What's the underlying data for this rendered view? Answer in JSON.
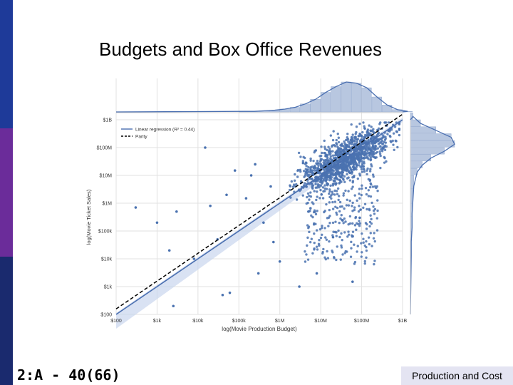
{
  "slide": {
    "title": "Budgets and Box Office Revenues",
    "footer_left": "2:A - 40(66)",
    "footer_right": "Production and Cost"
  },
  "colors": {
    "sidebar": [
      "#1e3a99",
      "#6b2c9a",
      "#1a2a6e"
    ],
    "point": "#4a72b0",
    "regression": "#4a6fb0",
    "ci_band": "#c9d6ee",
    "parity": "#000000",
    "hist_fill": "#b8c7e0",
    "grid": "#e1e1e1"
  },
  "chart_data": {
    "type": "scatter",
    "xlabel": "log(Movie Production Budget)",
    "ylabel": "log(Movie Ticket Sales)",
    "x_scale": "log",
    "y_scale": "log",
    "xlim": [
      100,
      1000000000
    ],
    "ylim": [
      100,
      1000000000
    ],
    "x_ticks": [
      100,
      1000,
      10000,
      100000,
      1000000,
      10000000,
      100000000,
      1000000000
    ],
    "x_tick_labels": [
      "$100",
      "$1k",
      "$10k",
      "$100k",
      "$1M",
      "$10M",
      "$100M",
      "$1B"
    ],
    "y_ticks": [
      100,
      1000,
      10000,
      100000,
      1000000,
      10000000,
      100000000,
      1000000000
    ],
    "y_tick_labels": [
      "$100",
      "$1k",
      "$10k",
      "$100k",
      "$1M",
      "$10M",
      "$100M",
      "$1B"
    ],
    "grid": true,
    "legend_position": "top-left",
    "legend": [
      {
        "label": "Linear regression (R² = 0.44)",
        "style": "solid",
        "color": "#4a6fb0"
      },
      {
        "label": "Parity",
        "style": "dashed",
        "color": "#000000"
      }
    ],
    "regression_line": {
      "x": [
        100,
        1000000000
      ],
      "y": [
        100,
        1000000000
      ]
    },
    "parity_line": {
      "x": [
        100,
        1000000000
      ],
      "y": [
        158,
        1580000000
      ]
    },
    "outliers": [
      {
        "x": 300,
        "y": 700000
      },
      {
        "x": 1000,
        "y": 200000
      },
      {
        "x": 3000,
        "y": 500000
      },
      {
        "x": 2000,
        "y": 20000
      },
      {
        "x": 8000,
        "y": 10000
      },
      {
        "x": 20000,
        "y": 800000
      },
      {
        "x": 50000,
        "y": 2000000
      },
      {
        "x": 15000,
        "y": 100000000
      },
      {
        "x": 30000,
        "y": 50000
      },
      {
        "x": 40000,
        "y": 500
      },
      {
        "x": 60000,
        "y": 600
      },
      {
        "x": 80000,
        "y": 15000000
      },
      {
        "x": 200000,
        "y": 10000000
      },
      {
        "x": 300000,
        "y": 3000
      },
      {
        "x": 400000,
        "y": 200000
      },
      {
        "x": 2500,
        "y": 200
      },
      {
        "x": 700000,
        "y": 40000
      },
      {
        "x": 1000000,
        "y": 8000
      },
      {
        "x": 3000000,
        "y": 1000
      },
      {
        "x": 5000000,
        "y": 500000
      },
      {
        "x": 8000000,
        "y": 3000
      },
      {
        "x": 20000000,
        "y": 60000
      },
      {
        "x": 60000000,
        "y": 1500
      },
      {
        "x": 90000000,
        "y": 300000
      },
      {
        "x": 150000,
        "y": 1500000
      },
      {
        "x": 250000,
        "y": 25000000
      },
      {
        "x": 600000,
        "y": 4000000
      }
    ],
    "cluster": {
      "x_center": 40000000,
      "y_center": 40000000,
      "x_spread_decades": 0.55,
      "y_spread_decades": 0.55,
      "count": 1200,
      "tail_count": 300
    },
    "budget_histogram": {
      "bins_log10": [
        5.0,
        5.25,
        5.5,
        5.75,
        6.0,
        6.25,
        6.5,
        6.75,
        7.0,
        7.25,
        7.5,
        7.75,
        8.0,
        8.25,
        8.5,
        8.75,
        9.0
      ],
      "counts": [
        1,
        1,
        2,
        3,
        5,
        8,
        14,
        22,
        34,
        44,
        52,
        50,
        42,
        26,
        12,
        4,
        1
      ]
    },
    "sales_histogram": {
      "bins_log10": [
        4.0,
        4.5,
        5.0,
        5.5,
        6.0,
        6.5,
        7.0,
        7.25,
        7.5,
        7.75,
        8.0,
        8.25,
        8.5,
        8.75,
        9.0
      ],
      "counts": [
        1,
        1,
        2,
        2,
        3,
        4,
        8,
        14,
        24,
        40,
        52,
        48,
        30,
        12,
        3
      ]
    }
  }
}
